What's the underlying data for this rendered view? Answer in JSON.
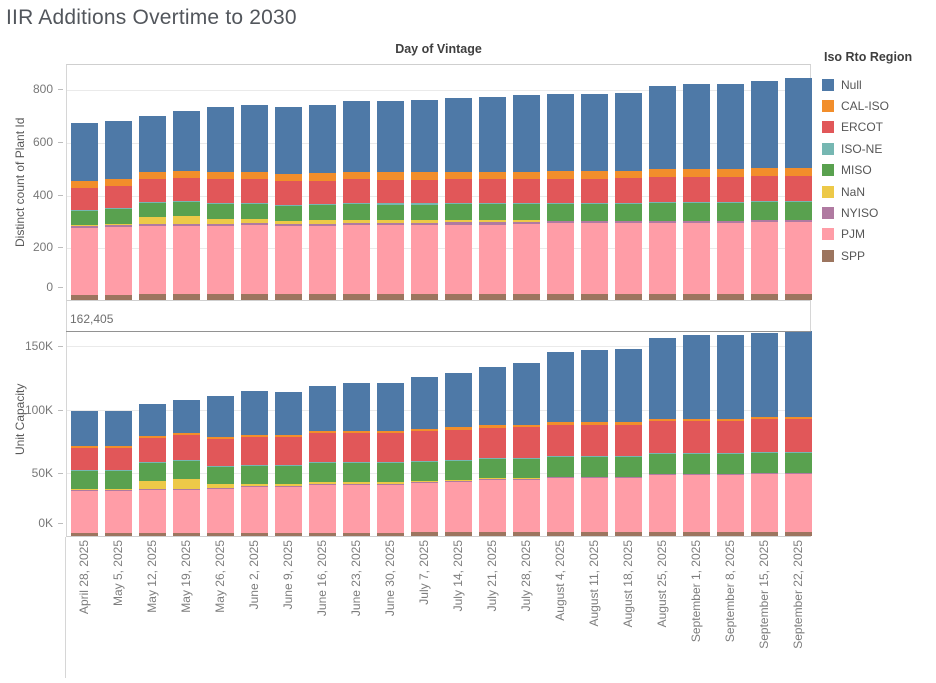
{
  "title": "IIR Additions Overtime to 2030",
  "column_header": "Day of Vintage",
  "legend": {
    "title": "Iso Rto Region",
    "items": [
      {
        "label": "Null",
        "color": "#4e79a7"
      },
      {
        "label": "CAL-ISO",
        "color": "#f28e2b"
      },
      {
        "label": "ERCOT",
        "color": "#e15759"
      },
      {
        "label": "ISO-NE",
        "color": "#76b7b2"
      },
      {
        "label": "MISO",
        "color": "#59a14f"
      },
      {
        "label": "NaN",
        "color": "#edc948"
      },
      {
        "label": "NYISO",
        "color": "#b07aa1"
      },
      {
        "label": "PJM",
        "color": "#ff9da7"
      },
      {
        "label": "SPP",
        "color": "#9c755f"
      }
    ]
  },
  "chart_data": [
    {
      "type": "bar",
      "stacked": true,
      "title": "Distinct count of Plant Id by Day of Vintage",
      "xlabel": "Day of Vintage",
      "ylabel": "Distinct count of Plant Id",
      "ylim": [
        0,
        895
      ],
      "grid": true,
      "legend_position": "right",
      "yticks": [
        {
          "value": 0,
          "label": "0"
        },
        {
          "value": 200,
          "label": "200"
        },
        {
          "value": 400,
          "label": "400"
        },
        {
          "value": 600,
          "label": "600"
        },
        {
          "value": 800,
          "label": "800"
        }
      ],
      "categories": [
        "April 28, 2025",
        "May 5, 2025",
        "May 12, 2025",
        "May 19, 2025",
        "May 26, 2025",
        "June 2, 2025",
        "June 9, 2025",
        "June 16, 2025",
        "June 23, 2025",
        "June 30, 2025",
        "July 7, 2025",
        "July 14, 2025",
        "July 21, 2025",
        "July 28, 2025",
        "August 4, 2025",
        "August 11, 2025",
        "August 18, 2025",
        "August 25, 2025",
        "September 1, 2025",
        "September 8, 2025",
        "September 15, 2025",
        "September 22, 2025"
      ],
      "series": [
        {
          "name": "Null",
          "values": [
            219,
            218,
            211,
            225,
            246,
            254,
            253,
            259,
            268,
            270,
            274,
            280,
            284,
            291,
            293,
            293,
            295,
            317,
            324,
            324,
            332,
            343
          ]
        },
        {
          "name": "CAL-ISO",
          "values": [
            27,
            27,
            28,
            28,
            28,
            28,
            28,
            28,
            28,
            28,
            28,
            28,
            28,
            28,
            29,
            29,
            29,
            30,
            30,
            30,
            30,
            30
          ]
        },
        {
          "name": "ERCOT",
          "values": [
            84,
            84,
            86,
            86,
            88,
            88,
            88,
            88,
            90,
            90,
            90,
            90,
            90,
            90,
            92,
            92,
            92,
            92,
            92,
            92,
            92,
            92
          ]
        },
        {
          "name": "ISO-NE",
          "values": [
            4,
            4,
            4,
            4,
            4,
            4,
            4,
            4,
            4,
            4,
            4,
            4,
            4,
            4,
            4,
            4,
            4,
            4,
            4,
            4,
            4,
            4
          ]
        },
        {
          "name": "MISO",
          "values": [
            53,
            55,
            55,
            55,
            57,
            58,
            58,
            58,
            60,
            60,
            60,
            60,
            62,
            62,
            64,
            64,
            66,
            68,
            68,
            68,
            70,
            70
          ]
        },
        {
          "name": "NaN",
          "values": [
            2,
            3,
            25,
            30,
            18,
            15,
            12,
            12,
            12,
            10,
            10,
            10,
            8,
            6,
            0,
            0,
            0,
            0,
            0,
            0,
            0,
            0
          ]
        },
        {
          "name": "NYISO",
          "values": [
            8,
            8,
            8,
            8,
            8,
            8,
            8,
            8,
            8,
            8,
            8,
            8,
            8,
            8,
            8,
            8,
            8,
            8,
            8,
            8,
            8,
            8
          ]
        },
        {
          "name": "PJM",
          "values": [
            253,
            255,
            258,
            258,
            260,
            262,
            258,
            260,
            262,
            262,
            262,
            264,
            264,
            266,
            268,
            268,
            268,
            270,
            270,
            270,
            272,
            272
          ]
        },
        {
          "name": "SPP",
          "values": [
            20,
            20,
            22,
            22,
            22,
            22,
            22,
            22,
            22,
            22,
            22,
            22,
            22,
            22,
            23,
            23,
            23,
            23,
            23,
            23,
            23,
            23
          ]
        }
      ]
    },
    {
      "type": "bar",
      "stacked": true,
      "title": "Unit Capacity by Day of Vintage",
      "xlabel": "Day of Vintage",
      "ylabel": "Unit Capacity",
      "ylim": [
        0,
        186000
      ],
      "grid": true,
      "legend_position": "right",
      "annotation": {
        "value": 162405,
        "label": "162,405"
      },
      "yticks": [
        {
          "value": 0,
          "label": "0K"
        },
        {
          "value": 50000,
          "label": "50K"
        },
        {
          "value": 100000,
          "label": "100K"
        },
        {
          "value": 150000,
          "label": "150K"
        }
      ],
      "categories": [
        "April 28, 2025",
        "May 5, 2025",
        "May 12, 2025",
        "May 19, 2025",
        "May 26, 2025",
        "June 2, 2025",
        "June 9, 2025",
        "June 16, 2025",
        "June 23, 2025",
        "June 30, 2025",
        "July 7, 2025",
        "July 14, 2025",
        "July 21, 2025",
        "July 28, 2025",
        "August 4, 2025",
        "August 11, 2025",
        "August 18, 2025",
        "August 25, 2025",
        "September 1, 2025",
        "September 8, 2025",
        "September 15, 2025",
        "September 22, 2025"
      ],
      "series": [
        {
          "name": "Null",
          "values": [
            27500,
            27500,
            25500,
            26000,
            33000,
            34500,
            33500,
            35500,
            37500,
            37500,
            41000,
            43000,
            46000,
            48500,
            56000,
            57000,
            58000,
            64000,
            66000,
            66000,
            66500,
            67905
          ]
        },
        {
          "name": "CAL-ISO",
          "values": [
            1500,
            1500,
            1500,
            1500,
            1500,
            1500,
            1500,
            1500,
            1500,
            1500,
            2000,
            2000,
            2000,
            2000,
            2000,
            2000,
            2000,
            2000,
            2000,
            2000,
            2000,
            2000
          ]
        },
        {
          "name": "ERCOT",
          "values": [
            17000,
            17000,
            19000,
            20000,
            21000,
            22000,
            22000,
            23000,
            23000,
            23000,
            24000,
            24000,
            24000,
            24000,
            25000,
            25000,
            25000,
            25000,
            25000,
            25000,
            26000,
            26000
          ]
        },
        {
          "name": "ISO-NE",
          "values": [
            500,
            500,
            500,
            500,
            500,
            500,
            500,
            500,
            500,
            500,
            500,
            500,
            500,
            500,
            500,
            500,
            500,
            500,
            500,
            500,
            500,
            500
          ]
        },
        {
          "name": "MISO",
          "values": [
            14000,
            14000,
            14000,
            14000,
            14000,
            14000,
            14000,
            15000,
            15000,
            15000,
            15000,
            15000,
            15000,
            15000,
            16000,
            16000,
            16000,
            16000,
            16000,
            16000,
            16500,
            16500
          ]
        },
        {
          "name": "NaN",
          "values": [
            500,
            500,
            6500,
            8000,
            3000,
            1500,
            1500,
            1500,
            1500,
            1500,
            1000,
            1000,
            1000,
            500,
            0,
            0,
            0,
            0,
            0,
            0,
            0,
            0
          ]
        },
        {
          "name": "NYISO",
          "values": [
            500,
            500,
            500,
            500,
            500,
            500,
            500,
            500,
            500,
            500,
            500,
            500,
            500,
            500,
            500,
            500,
            500,
            500,
            500,
            500,
            500,
            500
          ]
        },
        {
          "name": "PJM",
          "values": [
            33000,
            33000,
            34000,
            34000,
            35000,
            36000,
            36000,
            38000,
            38000,
            38000,
            39000,
            40000,
            41000,
            41000,
            43000,
            43000,
            43000,
            45000,
            45000,
            45000,
            46000,
            46000
          ]
        },
        {
          "name": "SPP",
          "values": [
            2500,
            2500,
            2500,
            2500,
            2500,
            2500,
            2500,
            2500,
            2500,
            2500,
            3000,
            3000,
            3000,
            3000,
            3000,
            3000,
            3000,
            3000,
            3000,
            3000,
            3000,
            3000
          ]
        }
      ]
    }
  ]
}
